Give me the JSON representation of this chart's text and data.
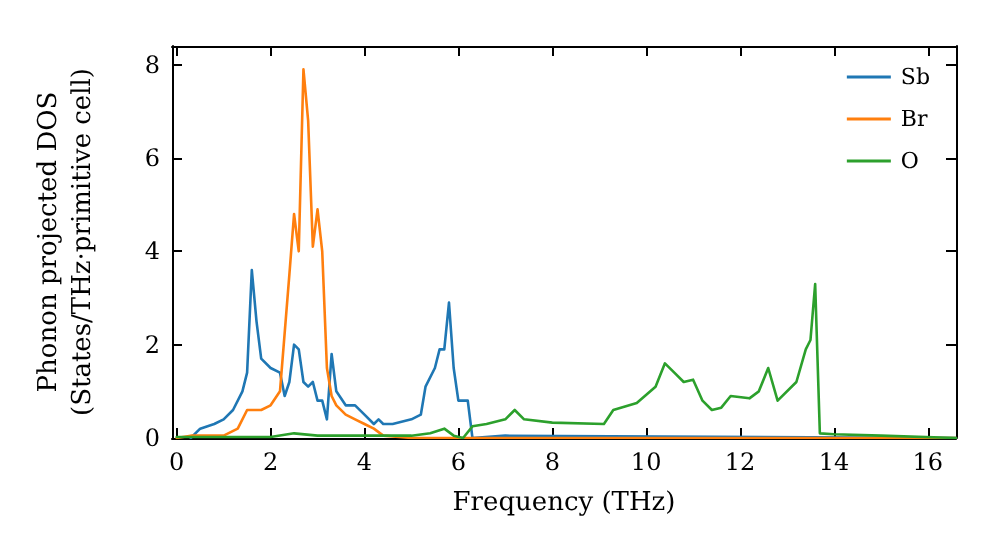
{
  "chart_data": {
    "type": "line",
    "xlabel": "Frequency (THz)",
    "ylabel": "Phonon projected DOS\n(States/THz·primitive cell)",
    "xlim": [
      -0.1,
      16.6
    ],
    "xticks": [
      0,
      2,
      4,
      6,
      8,
      10,
      12,
      14,
      16
    ],
    "ylim": [
      0,
      8.4
    ],
    "yticks": [
      0,
      2,
      4,
      6,
      8
    ],
    "legend": "top right",
    "grid": false,
    "marker": "none",
    "line_style": "solid",
    "series": [
      {
        "name": "Sb",
        "color": "#1f77b4",
        "x": [
          0.3,
          0.5,
          0.8,
          1.0,
          1.2,
          1.4,
          1.5,
          1.6,
          1.7,
          1.8,
          2.0,
          2.2,
          2.3,
          2.4,
          2.5,
          2.6,
          2.7,
          2.8,
          2.9,
          3.0,
          3.1,
          3.2,
          3.3,
          3.4,
          3.6,
          3.8,
          4.0,
          4.2,
          4.3,
          4.4,
          4.6,
          5.0,
          5.2,
          5.3,
          5.5,
          5.6,
          5.7,
          5.8,
          5.9,
          6.0,
          6.2,
          6.3,
          7.0,
          16.6
        ],
        "values": [
          0,
          0.2,
          0.3,
          0.4,
          0.6,
          1.0,
          1.4,
          3.6,
          2.5,
          1.7,
          1.5,
          1.4,
          0.9,
          1.2,
          2.0,
          1.9,
          1.2,
          1.1,
          1.2,
          0.8,
          0.8,
          0.4,
          1.8,
          1.0,
          0.7,
          0.7,
          0.5,
          0.3,
          0.4,
          0.3,
          0.3,
          0.4,
          0.5,
          1.1,
          1.5,
          1.9,
          1.9,
          2.9,
          1.5,
          0.8,
          0.8,
          0,
          0.05,
          0
        ]
      },
      {
        "name": "Br",
        "color": "#ff7f0e",
        "x": [
          0,
          0.3,
          1.0,
          1.3,
          1.5,
          1.8,
          2.0,
          2.2,
          2.4,
          2.5,
          2.6,
          2.7,
          2.8,
          2.9,
          3.0,
          3.1,
          3.2,
          3.3,
          3.4,
          3.6,
          3.8,
          4.0,
          4.2,
          4.4,
          5.0,
          16.6
        ],
        "values": [
          0,
          0.05,
          0.05,
          0.2,
          0.6,
          0.6,
          0.7,
          1.0,
          3.5,
          4.8,
          4.0,
          7.9,
          6.8,
          4.1,
          4.9,
          4.0,
          1.5,
          0.9,
          0.7,
          0.5,
          0.4,
          0.3,
          0.2,
          0.05,
          0,
          0
        ]
      },
      {
        "name": "O",
        "color": "#2ca02c",
        "x": [
          0,
          2,
          2.5,
          3,
          5,
          5.4,
          5.7,
          5.9,
          6.1,
          6.3,
          6.6,
          7.0,
          7.2,
          7.4,
          8,
          9.1,
          9.3,
          9.8,
          10.2,
          10.4,
          10.6,
          10.8,
          11.0,
          11.2,
          11.4,
          11.6,
          11.8,
          12.2,
          12.4,
          12.6,
          12.8,
          13.2,
          13.4,
          13.5,
          13.6,
          13.7,
          14,
          15,
          16.6
        ],
        "values": [
          0.02,
          0.02,
          0.1,
          0.05,
          0.05,
          0.1,
          0.2,
          0.05,
          0,
          0.25,
          0.3,
          0.4,
          0.6,
          0.4,
          0.33,
          0.3,
          0.6,
          0.75,
          1.1,
          1.6,
          1.4,
          1.2,
          1.25,
          0.8,
          0.6,
          0.65,
          0.9,
          0.85,
          1.0,
          1.5,
          0.8,
          1.2,
          1.9,
          2.1,
          3.3,
          0.1,
          0.08,
          0.05,
          0
        ]
      }
    ]
  }
}
